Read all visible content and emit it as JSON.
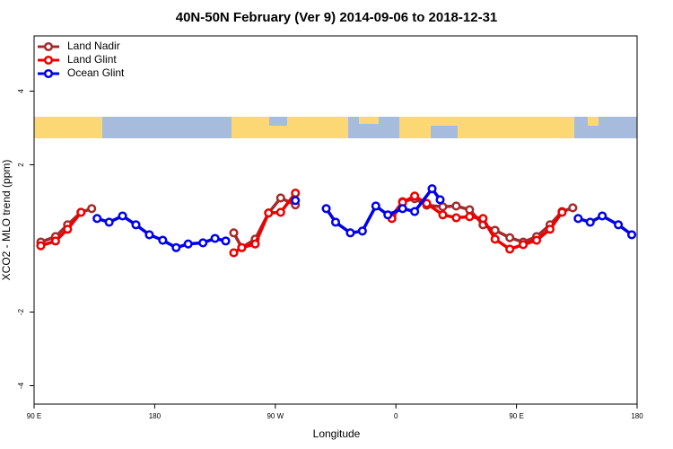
{
  "chart_data": {
    "type": "line",
    "title": "40N-50N February (Ver 9)   2014-09-06 to 2018-12-31",
    "x_label": "Longitude",
    "y_label": "XCO2 - MLO trend (ppm)",
    "xlim": [
      90,
      540
    ],
    "xticks": [
      {
        "value": 90,
        "label": "90 E"
      },
      {
        "value": 180,
        "label": "180"
      },
      {
        "value": 270,
        "label": "90 W"
      },
      {
        "value": 360,
        "label": "0"
      },
      {
        "value": 450,
        "label": "90 E"
      },
      {
        "value": 540,
        "label": "180"
      }
    ],
    "ylim": [
      -4.5,
      5.5
    ],
    "yticks": [
      -4,
      -2,
      2,
      4
    ],
    "legend": "top-left",
    "series": [
      {
        "name": "Land Nadir",
        "color": "#a52a2a",
        "x": [
          95,
          106,
          115,
          125,
          133,
          null,
          239,
          245,
          255,
          265,
          274,
          285,
          null,
          357,
          365,
          374,
          383,
          395,
          405,
          415,
          425,
          434,
          445,
          455,
          465,
          475,
          484,
          492
        ],
        "values": [
          -0.1,
          0.05,
          0.37,
          0.71,
          0.81,
          null,
          0.15,
          -0.25,
          -0.02,
          0.69,
          1.1,
          0.91,
          null,
          0.61,
          1.0,
          1.08,
          0.9,
          0.86,
          0.88,
          0.78,
          0.37,
          0.22,
          0.02,
          -0.1,
          0.05,
          0.37,
          0.73,
          0.83
        ]
      },
      {
        "name": "Land Glint",
        "color": "#ee0000",
        "x": [
          95,
          106,
          115,
          125,
          null,
          239,
          245,
          255,
          265,
          274,
          285,
          null,
          357,
          365,
          374,
          383,
          395,
          405,
          415,
          425,
          434,
          445,
          455,
          465,
          475,
          484
        ],
        "values": [
          -0.2,
          -0.07,
          0.25,
          0.71,
          null,
          -0.39,
          -0.25,
          -0.15,
          0.69,
          0.71,
          1.23,
          null,
          0.54,
          0.98,
          1.15,
          0.95,
          0.64,
          0.56,
          0.59,
          0.54,
          -0.02,
          -0.29,
          -0.17,
          -0.05,
          0.25,
          0.71
        ]
      },
      {
        "name": "Ocean Glint",
        "color": "#0000ee",
        "x": [
          137,
          146,
          156,
          166,
          176,
          186,
          196,
          205,
          216,
          225,
          233,
          null,
          285,
          null,
          308,
          315,
          326,
          335,
          345,
          354,
          365,
          374,
          387,
          393,
          null,
          496,
          505,
          514,
          526,
          536
        ],
        "values": [
          0.54,
          0.44,
          0.61,
          0.37,
          0.1,
          -0.05,
          -0.25,
          -0.15,
          -0.12,
          0,
          -0.07,
          null,
          1.03,
          null,
          0.81,
          0.44,
          0.15,
          0.2,
          0.88,
          0.64,
          0.81,
          0.73,
          1.35,
          1.05,
          null,
          0.54,
          0.44,
          0.61,
          0.37,
          0.1
        ]
      }
    ]
  }
}
